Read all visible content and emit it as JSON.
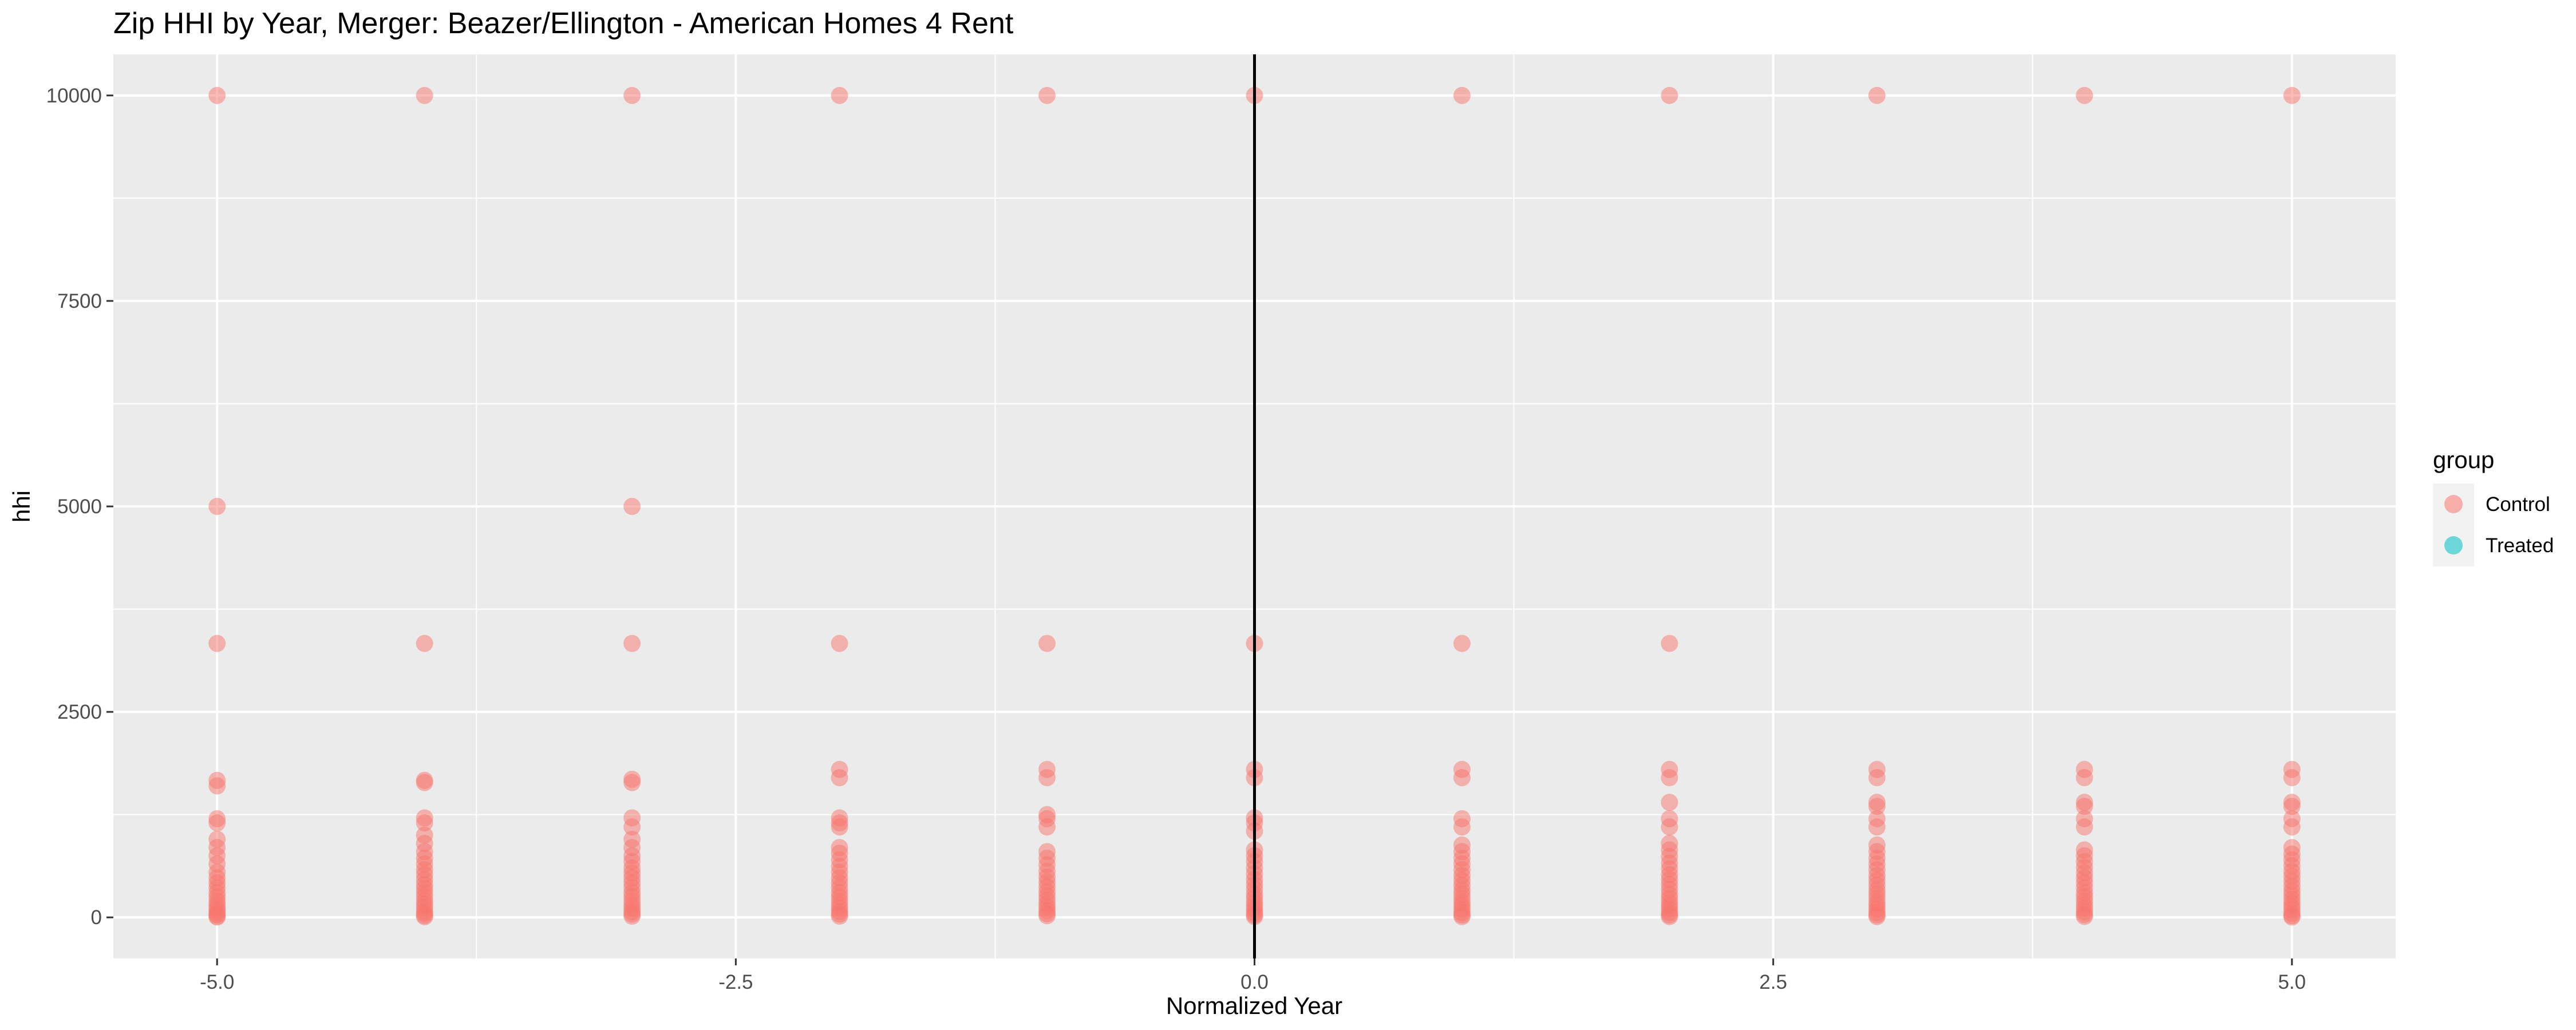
{
  "chart_data": {
    "type": "scatter",
    "title": "Zip HHI by Year, Merger: Beazer/Ellington - American Homes 4 Rent",
    "xlabel": "Normalized Year",
    "ylabel": "hhi",
    "xlim": [
      -5.5,
      5.5
    ],
    "ylim": [
      -500,
      10500
    ],
    "x_ticks": [
      -5.0,
      -2.5,
      0.0,
      2.5,
      5.0
    ],
    "x_tick_labels": [
      "-5.0",
      "-2.5",
      "0.0",
      "2.5",
      "5.0"
    ],
    "y_ticks": [
      0,
      2500,
      5000,
      7500,
      10000
    ],
    "y_tick_labels": [
      "0",
      "2500",
      "5000",
      "7500",
      "10000"
    ],
    "grid": true,
    "vline_x": 0,
    "legend": {
      "title": "group",
      "position": "right",
      "entries": [
        {
          "label": "Control",
          "color": "#F8766D"
        },
        {
          "label": "Treated",
          "color": "#00BFC4"
        }
      ]
    },
    "series": [
      {
        "name": "Control",
        "color": "#F8766D",
        "points": [
          [
            -5,
            10000
          ],
          [
            -5,
            5000
          ],
          [
            -5,
            3333
          ],
          [
            -5,
            1667
          ],
          [
            -5,
            1600
          ],
          [
            -5,
            1200
          ],
          [
            -5,
            1150
          ],
          [
            -5,
            950
          ],
          [
            -5,
            850
          ],
          [
            -5,
            750
          ],
          [
            -5,
            650
          ],
          [
            -5,
            550
          ],
          [
            -5,
            480
          ],
          [
            -5,
            420
          ],
          [
            -5,
            360
          ],
          [
            -5,
            300
          ],
          [
            -5,
            250
          ],
          [
            -5,
            200
          ],
          [
            -5,
            160
          ],
          [
            -5,
            120
          ],
          [
            -5,
            90
          ],
          [
            -5,
            60
          ],
          [
            -5,
            35
          ],
          [
            -5,
            15
          ],
          [
            -5,
            5
          ],
          [
            -4,
            10000
          ],
          [
            -4,
            3333
          ],
          [
            -4,
            1667
          ],
          [
            -4,
            1640
          ],
          [
            -4,
            1210
          ],
          [
            -4,
            1150
          ],
          [
            -4,
            1000
          ],
          [
            -4,
            900
          ],
          [
            -4,
            800
          ],
          [
            -4,
            720
          ],
          [
            -4,
            650
          ],
          [
            -4,
            580
          ],
          [
            -4,
            520
          ],
          [
            -4,
            460
          ],
          [
            -4,
            400
          ],
          [
            -4,
            350
          ],
          [
            -4,
            300
          ],
          [
            -4,
            250
          ],
          [
            -4,
            200
          ],
          [
            -4,
            160
          ],
          [
            -4,
            120
          ],
          [
            -4,
            80
          ],
          [
            -4,
            50
          ],
          [
            -4,
            25
          ],
          [
            -4,
            8
          ],
          [
            -3,
            10000
          ],
          [
            -3,
            5000
          ],
          [
            -3,
            3333
          ],
          [
            -3,
            1680
          ],
          [
            -3,
            1640
          ],
          [
            -3,
            1210
          ],
          [
            -3,
            1100
          ],
          [
            -3,
            950
          ],
          [
            -3,
            850
          ],
          [
            -3,
            750
          ],
          [
            -3,
            680
          ],
          [
            -3,
            600
          ],
          [
            -3,
            540
          ],
          [
            -3,
            480
          ],
          [
            -3,
            420
          ],
          [
            -3,
            360
          ],
          [
            -3,
            300
          ],
          [
            -3,
            250
          ],
          [
            -3,
            200
          ],
          [
            -3,
            150
          ],
          [
            -3,
            110
          ],
          [
            -3,
            70
          ],
          [
            -3,
            40
          ],
          [
            -3,
            15
          ],
          [
            -2,
            10000
          ],
          [
            -2,
            3333
          ],
          [
            -2,
            1800
          ],
          [
            -2,
            1700
          ],
          [
            -2,
            1210
          ],
          [
            -2,
            1150
          ],
          [
            -2,
            1100
          ],
          [
            -2,
            850
          ],
          [
            -2,
            780
          ],
          [
            -2,
            700
          ],
          [
            -2,
            620
          ],
          [
            -2,
            550
          ],
          [
            -2,
            480
          ],
          [
            -2,
            420
          ],
          [
            -2,
            360
          ],
          [
            -2,
            300
          ],
          [
            -2,
            250
          ],
          [
            -2,
            200
          ],
          [
            -2,
            150
          ],
          [
            -2,
            110
          ],
          [
            -2,
            70
          ],
          [
            -2,
            40
          ],
          [
            -2,
            15
          ],
          [
            -1,
            10000
          ],
          [
            -1,
            3333
          ],
          [
            -1,
            1800
          ],
          [
            -1,
            1700
          ],
          [
            -1,
            1250
          ],
          [
            -1,
            1200
          ],
          [
            -1,
            1100
          ],
          [
            -1,
            800
          ],
          [
            -1,
            720
          ],
          [
            -1,
            640
          ],
          [
            -1,
            560
          ],
          [
            -1,
            490
          ],
          [
            -1,
            430
          ],
          [
            -1,
            370
          ],
          [
            -1,
            310
          ],
          [
            -1,
            260
          ],
          [
            -1,
            210
          ],
          [
            -1,
            160
          ],
          [
            -1,
            120
          ],
          [
            -1,
            80
          ],
          [
            -1,
            45
          ],
          [
            -1,
            20
          ],
          [
            0,
            10000
          ],
          [
            0,
            3333
          ],
          [
            0,
            1800
          ],
          [
            0,
            1700
          ],
          [
            0,
            1210
          ],
          [
            0,
            1150
          ],
          [
            0,
            1050
          ],
          [
            0,
            820
          ],
          [
            0,
            750
          ],
          [
            0,
            680
          ],
          [
            0,
            600
          ],
          [
            0,
            530
          ],
          [
            0,
            460
          ],
          [
            0,
            400
          ],
          [
            0,
            340
          ],
          [
            0,
            280
          ],
          [
            0,
            230
          ],
          [
            0,
            180
          ],
          [
            0,
            140
          ],
          [
            0,
            100
          ],
          [
            0,
            60
          ],
          [
            0,
            30
          ],
          [
            0,
            10
          ],
          [
            1,
            10000
          ],
          [
            1,
            3333
          ],
          [
            1,
            1800
          ],
          [
            1,
            1700
          ],
          [
            1,
            1200
          ],
          [
            1,
            1100
          ],
          [
            1,
            880
          ],
          [
            1,
            800
          ],
          [
            1,
            720
          ],
          [
            1,
            650
          ],
          [
            1,
            580
          ],
          [
            1,
            510
          ],
          [
            1,
            450
          ],
          [
            1,
            390
          ],
          [
            1,
            330
          ],
          [
            1,
            280
          ],
          [
            1,
            230
          ],
          [
            1,
            180
          ],
          [
            1,
            140
          ],
          [
            1,
            100
          ],
          [
            1,
            60
          ],
          [
            1,
            30
          ],
          [
            1,
            10
          ],
          [
            2,
            10000
          ],
          [
            2,
            3333
          ],
          [
            2,
            1800
          ],
          [
            2,
            1700
          ],
          [
            2,
            1400
          ],
          [
            2,
            1200
          ],
          [
            2,
            1100
          ],
          [
            2,
            900
          ],
          [
            2,
            820
          ],
          [
            2,
            740
          ],
          [
            2,
            660
          ],
          [
            2,
            590
          ],
          [
            2,
            520
          ],
          [
            2,
            460
          ],
          [
            2,
            400
          ],
          [
            2,
            340
          ],
          [
            2,
            280
          ],
          [
            2,
            230
          ],
          [
            2,
            180
          ],
          [
            2,
            140
          ],
          [
            2,
            100
          ],
          [
            2,
            60
          ],
          [
            2,
            30
          ],
          [
            2,
            10
          ],
          [
            3,
            10000
          ],
          [
            3,
            1800
          ],
          [
            3,
            1700
          ],
          [
            3,
            1400
          ],
          [
            3,
            1350
          ],
          [
            3,
            1200
          ],
          [
            3,
            1100
          ],
          [
            3,
            880
          ],
          [
            3,
            800
          ],
          [
            3,
            720
          ],
          [
            3,
            650
          ],
          [
            3,
            580
          ],
          [
            3,
            510
          ],
          [
            3,
            450
          ],
          [
            3,
            390
          ],
          [
            3,
            330
          ],
          [
            3,
            280
          ],
          [
            3,
            230
          ],
          [
            3,
            180
          ],
          [
            3,
            140
          ],
          [
            3,
            100
          ],
          [
            3,
            60
          ],
          [
            3,
            30
          ],
          [
            3,
            10
          ],
          [
            4,
            10000
          ],
          [
            4,
            1800
          ],
          [
            4,
            1700
          ],
          [
            4,
            1400
          ],
          [
            4,
            1350
          ],
          [
            4,
            1200
          ],
          [
            4,
            1100
          ],
          [
            4,
            820
          ],
          [
            4,
            750
          ],
          [
            4,
            680
          ],
          [
            4,
            610
          ],
          [
            4,
            540
          ],
          [
            4,
            480
          ],
          [
            4,
            420
          ],
          [
            4,
            360
          ],
          [
            4,
            300
          ],
          [
            4,
            250
          ],
          [
            4,
            200
          ],
          [
            4,
            150
          ],
          [
            4,
            110
          ],
          [
            4,
            70
          ],
          [
            4,
            35
          ],
          [
            4,
            12
          ],
          [
            5,
            10000
          ],
          [
            5,
            1800
          ],
          [
            5,
            1700
          ],
          [
            5,
            1400
          ],
          [
            5,
            1350
          ],
          [
            5,
            1200
          ],
          [
            5,
            1100
          ],
          [
            5,
            850
          ],
          [
            5,
            770
          ],
          [
            5,
            700
          ],
          [
            5,
            630
          ],
          [
            5,
            560
          ],
          [
            5,
            500
          ],
          [
            5,
            440
          ],
          [
            5,
            380
          ],
          [
            5,
            320
          ],
          [
            5,
            270
          ],
          [
            5,
            220
          ],
          [
            5,
            170
          ],
          [
            5,
            130
          ],
          [
            5,
            90
          ],
          [
            5,
            50
          ],
          [
            5,
            20
          ],
          [
            5,
            5
          ]
        ]
      },
      {
        "name": "Treated",
        "color": "#00BFC4",
        "points": []
      }
    ]
  }
}
